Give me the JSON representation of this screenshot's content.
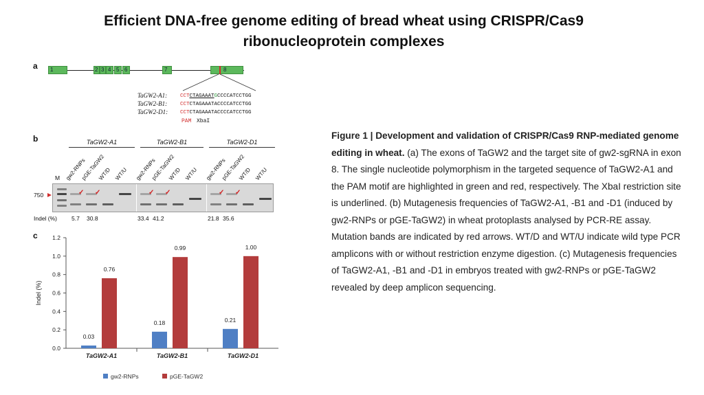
{
  "title": {
    "line1": "Efficient DNA-free genome editing of bread wheat using CRISPR/Cas9",
    "line2": "ribonucleoprotein complexes"
  },
  "figure": {
    "panel_a": {
      "letter": "a",
      "exons": [
        "1",
        "2",
        "3",
        "4",
        "5",
        "6",
        "7",
        "8"
      ],
      "alleles": [
        {
          "label": "TaGW2-A1:",
          "pam": "CCT",
          "pre": "CTAGAAAT",
          "snp": "G",
          "post": "CCCCATCCTGG"
        },
        {
          "label": "TaGW2-B1:",
          "pam": "CCT",
          "pre": "CTAGAAATACCCCATCCTGG",
          "snp": "",
          "post": ""
        },
        {
          "label": "TaGW2-D1:",
          "pam": "CCT",
          "pre": "CTAGAAATACCCCATCCTGG",
          "snp": "",
          "post": ""
        }
      ],
      "pam_label": "PAM",
      "site_label": "XbaI",
      "colors": {
        "exon": "#5cb85c",
        "pam": "#d12b2b",
        "snp": "#2f9c3f"
      }
    },
    "panel_b": {
      "letter": "b",
      "marker_label": "M",
      "size_label": "750",
      "genes": [
        "TaGW2-A1",
        "TaGW2-B1",
        "TaGW2-D1"
      ],
      "lanes": [
        "gw2-RNPs",
        "pGE-TaGW2",
        "WT/D",
        "WT/U"
      ],
      "indel_label": "Indel (%)",
      "indel_values": [
        [
          "5.7",
          "30.8"
        ],
        [
          "33.4",
          "41.2"
        ],
        [
          "21.8",
          "35.6"
        ]
      ]
    },
    "panel_c": {
      "letter": "c",
      "chart_data": {
        "type": "bar",
        "categories": [
          "TaGW2-A1",
          "TaGW2-B1",
          "TaGW2-D1"
        ],
        "series": [
          {
            "name": "gw2-RNPs",
            "values": [
              0.03,
              0.18,
              0.21
            ],
            "color": "#4f7fc4"
          },
          {
            "name": "pGE-TaGW2",
            "values": [
              0.76,
              0.99,
              1.0
            ],
            "color": "#b33c3c"
          }
        ],
        "data_labels": [
          [
            "0.03",
            "0.76"
          ],
          [
            "0.18",
            "0.99"
          ],
          [
            "0.21",
            "1.00"
          ]
        ],
        "ylabel": "Indel (%)",
        "ylim": [
          0,
          1.2
        ],
        "yticks": [
          "0.0",
          "0.2",
          "0.4",
          "0.6",
          "0.8",
          "1.0",
          "1.2"
        ],
        "grid": false,
        "legend_position": "bottom"
      }
    }
  },
  "caption": {
    "head": "Figure 1 | Development and validation of CRISPR/Cas9 RNP-mediated genome editing in wheat.",
    "text": " (a) The exons of TaGW2 and the target site of gw2-sgRNA in exon 8. The single nucleotide polymorphism in the targeted sequence of TaGW2-A1 and the PAM motif are highlighted in green and red, respectively. The XbaI restriction site is underlined. (b) Mutagenesis frequencies of TaGW2-A1, -B1 and -D1 (induced by gw2-RNPs or pGE-TaGW2) in wheat protoplasts analysed by PCR-RE assay. Mutation bands are indicated by red arrows. WT/D and WT/U indicate wild type PCR amplicons with or without restriction enzyme digestion. (c) Mutagenesis frequencies of TaGW2-A1, -B1 and -D1 in embryos treated with gw2-RNPs or pGE-TaGW2 revealed by deep amplicon sequencing."
  }
}
